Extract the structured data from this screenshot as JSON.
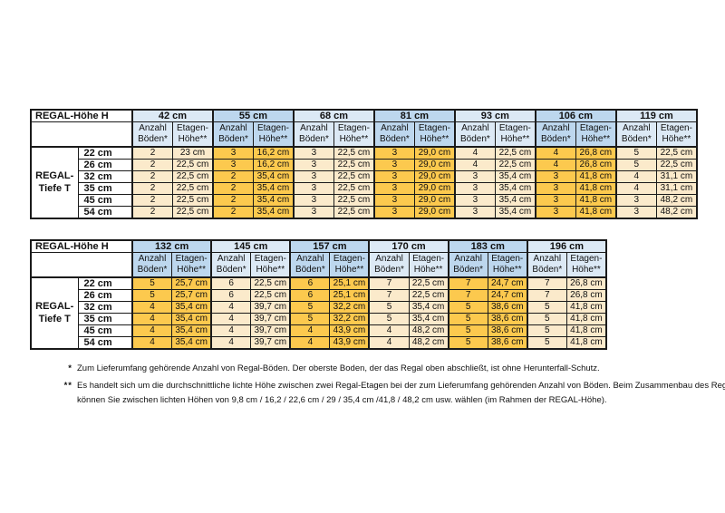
{
  "colors": {
    "header_light_blue": "#DCE9F5",
    "header_dark_blue": "#BDD7EE",
    "cell_cream": "#FBEACB",
    "cell_gold": "#FCC94E",
    "border": "#1a1a1a",
    "background": "#ffffff"
  },
  "labels": {
    "corner": "REGAL-Höhe H",
    "row_group": "REGAL-\nTiefe T",
    "sub_anzahl": "Anzahl\nBöden*",
    "sub_etagen": "Etagen-\nHöhe**"
  },
  "depths": [
    "22 cm",
    "26 cm",
    "32 cm",
    "35 cm",
    "45 cm",
    "54 cm"
  ],
  "tables": [
    {
      "heights": [
        {
          "label": "42 cm",
          "shade": "light",
          "rows": [
            [
              "2",
              "23 cm"
            ],
            [
              "2",
              "22,5 cm"
            ],
            [
              "2",
              "22,5 cm"
            ],
            [
              "2",
              "22,5 cm"
            ],
            [
              "2",
              "22,5 cm"
            ],
            [
              "2",
              "22,5 cm"
            ]
          ]
        },
        {
          "label": "55 cm",
          "shade": "dark",
          "rows": [
            [
              "3",
              "16,2 cm"
            ],
            [
              "3",
              "16,2 cm"
            ],
            [
              "2",
              "35,4 cm"
            ],
            [
              "2",
              "35,4 cm"
            ],
            [
              "2",
              "35,4 cm"
            ],
            [
              "2",
              "35,4 cm"
            ]
          ]
        },
        {
          "label": "68 cm",
          "shade": "light",
          "rows": [
            [
              "3",
              "22,5 cm"
            ],
            [
              "3",
              "22,5 cm"
            ],
            [
              "3",
              "22,5 cm"
            ],
            [
              "3",
              "22,5 cm"
            ],
            [
              "3",
              "22,5 cm"
            ],
            [
              "3",
              "22,5 cm"
            ]
          ]
        },
        {
          "label": "81 cm",
          "shade": "dark",
          "rows": [
            [
              "3",
              "29,0 cm"
            ],
            [
              "3",
              "29,0 cm"
            ],
            [
              "3",
              "29,0 cm"
            ],
            [
              "3",
              "29,0 cm"
            ],
            [
              "3",
              "29,0 cm"
            ],
            [
              "3",
              "29,0 cm"
            ]
          ]
        },
        {
          "label": "93 cm",
          "shade": "light",
          "rows": [
            [
              "4",
              "22,5 cm"
            ],
            [
              "4",
              "22,5 cm"
            ],
            [
              "3",
              "35,4 cm"
            ],
            [
              "3",
              "35,4 cm"
            ],
            [
              "3",
              "35,4 cm"
            ],
            [
              "3",
              "35,4 cm"
            ]
          ]
        },
        {
          "label": "106 cm",
          "shade": "dark",
          "rows": [
            [
              "4",
              "26,8 cm"
            ],
            [
              "4",
              "26,8 cm"
            ],
            [
              "3",
              "41,8 cm"
            ],
            [
              "3",
              "41,8 cm"
            ],
            [
              "3",
              "41,8 cm"
            ],
            [
              "3",
              "41,8 cm"
            ]
          ]
        },
        {
          "label": "119 cm",
          "shade": "light",
          "rows": [
            [
              "5",
              "22,5 cm"
            ],
            [
              "5",
              "22,5 cm"
            ],
            [
              "4",
              "31,1 cm"
            ],
            [
              "4",
              "31,1 cm"
            ],
            [
              "3",
              "48,2 cm"
            ],
            [
              "3",
              "48,2 cm"
            ]
          ]
        }
      ]
    },
    {
      "heights": [
        {
          "label": "132 cm",
          "shade": "dark",
          "rows": [
            [
              "5",
              "25,7 cm"
            ],
            [
              "5",
              "25,7 cm"
            ],
            [
              "4",
              "35,4 cm"
            ],
            [
              "4",
              "35,4 cm"
            ],
            [
              "4",
              "35,4 cm"
            ],
            [
              "4",
              "35,4 cm"
            ]
          ]
        },
        {
          "label": "145 cm",
          "shade": "light",
          "rows": [
            [
              "6",
              "22,5 cm"
            ],
            [
              "6",
              "22,5 cm"
            ],
            [
              "4",
              "39,7 cm"
            ],
            [
              "4",
              "39,7 cm"
            ],
            [
              "4",
              "39,7 cm"
            ],
            [
              "4",
              "39,7 cm"
            ]
          ]
        },
        {
          "label": "157 cm",
          "shade": "dark",
          "rows": [
            [
              "6",
              "25,1 cm"
            ],
            [
              "6",
              "25,1 cm"
            ],
            [
              "5",
              "32,2 cm"
            ],
            [
              "5",
              "32,2 cm"
            ],
            [
              "4",
              "43,9 cm"
            ],
            [
              "4",
              "43,9 cm"
            ]
          ]
        },
        {
          "label": "170 cm",
          "shade": "light",
          "rows": [
            [
              "7",
              "22,5 cm"
            ],
            [
              "7",
              "22,5 cm"
            ],
            [
              "5",
              "35,4 cm"
            ],
            [
              "5",
              "35,4 cm"
            ],
            [
              "4",
              "48,2 cm"
            ],
            [
              "4",
              "48,2 cm"
            ]
          ]
        },
        {
          "label": "183 cm",
          "shade": "dark",
          "rows": [
            [
              "7",
              "24,7 cm"
            ],
            [
              "7",
              "24,7 cm"
            ],
            [
              "5",
              "38,6 cm"
            ],
            [
              "5",
              "38,6 cm"
            ],
            [
              "5",
              "38,6 cm"
            ],
            [
              "5",
              "38,6 cm"
            ]
          ]
        },
        {
          "label": "196 cm",
          "shade": "light",
          "rows": [
            [
              "7",
              "26,8 cm"
            ],
            [
              "7",
              "26,8 cm"
            ],
            [
              "5",
              "41,8 cm"
            ],
            [
              "5",
              "41,8 cm"
            ],
            [
              "5",
              "41,8 cm"
            ],
            [
              "5",
              "41,8 cm"
            ]
          ]
        }
      ]
    }
  ],
  "footnotes": [
    {
      "marker": "*",
      "lines": [
        "Zum Lieferumfang gehörende Anzahl von Regal-Böden. Der oberste Boden, der das Regal oben abschließt, ist ohne Herunterfall-Schutz."
      ]
    },
    {
      "marker": "**",
      "lines": [
        "Es handelt sich um die durchschnittliche lichte Höhe zwischen zwei Regal-Etagen bei der zum Lieferumfang gehörenden Anzahl von  Böden. Beim Zusammenbau des Regals",
        "können Sie zwischen lichten Höhen von 9,8 cm / 16,2 / 22,6 cm / 29 / 35,4 cm /41,8 / 48,2 cm usw. wählen (im Rahmen der REGAL-Höhe)."
      ]
    }
  ]
}
